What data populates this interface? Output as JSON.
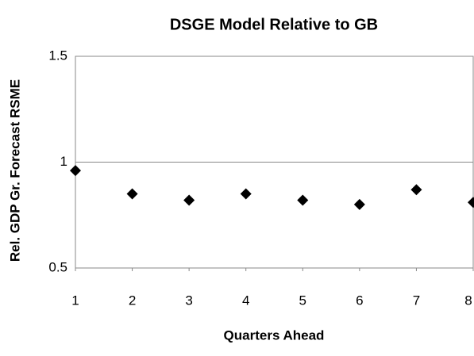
{
  "chart_data": {
    "type": "scatter",
    "title": "DSGE Model Relative to GB",
    "x_label": "Quarters Ahead",
    "y_label": "Rel. GDP Gr. Forecast RSME",
    "x": [
      1,
      2,
      3,
      4,
      5,
      6,
      7,
      8
    ],
    "values": [
      0.96,
      0.85,
      0.82,
      0.85,
      0.82,
      0.8,
      0.87,
      0.81
    ],
    "color": "#000000",
    "marker": "diamond",
    "xlim": [
      1,
      8
    ],
    "xticks": [
      1,
      2,
      3,
      4,
      5,
      6,
      7,
      8
    ],
    "ylim": [
      0.5,
      1.5
    ],
    "yticks": [
      0.5,
      1,
      1.5
    ],
    "grid": true
  }
}
